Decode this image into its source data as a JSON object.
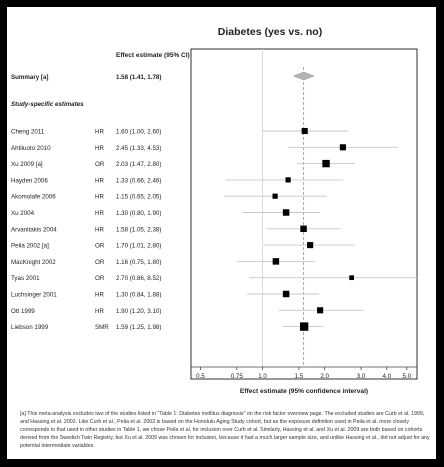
{
  "chart_data": {
    "type": "forest",
    "title": "Diabetes (yes vs. no)",
    "effect_header": "Effect estimate (95% CI)",
    "summary": {
      "label": "Summary [a]",
      "estimate": 1.58,
      "lower": 1.41,
      "upper": 1.78,
      "text": "1.58 (1.41, 1.78)"
    },
    "section_label": "Study-specific estimates",
    "studies": [
      {
        "label": "Cheng 2011",
        "measure": "HR",
        "estimate": 1.6,
        "lower": 1.0,
        "upper": 2.6,
        "text": "1.60 (1.00, 2.60)",
        "weight": 2
      },
      {
        "label": "Ahtiluoto 2010",
        "measure": "HR",
        "estimate": 2.45,
        "lower": 1.33,
        "upper": 4.53,
        "text": "2.45 (1.33, 4.53)",
        "weight": 2
      },
      {
        "label": "Xu 2009 [a]",
        "measure": "OR",
        "estimate": 2.03,
        "lower": 1.47,
        "upper": 2.8,
        "text": "2.03 (1.47, 2.80)",
        "weight": 4
      },
      {
        "label": "Hayden 2006",
        "measure": "HR",
        "estimate": 1.33,
        "lower": 0.66,
        "upper": 2.46,
        "text": "1.33 (0.66, 2.46)",
        "weight": 1
      },
      {
        "label": "Akomolafe 2006",
        "measure": "HR",
        "estimate": 1.15,
        "lower": 0.65,
        "upper": 2.05,
        "text": "1.15 (0.65, 2.05)",
        "weight": 1
      },
      {
        "label": "Xu 2004",
        "measure": "HR",
        "estimate": 1.3,
        "lower": 0.8,
        "upper": 1.9,
        "text": "1.30 (0.80, 1.90)",
        "weight": 2.5
      },
      {
        "label": "Arvanitakis 2004",
        "measure": "HR",
        "estimate": 1.58,
        "lower": 1.05,
        "upper": 2.38,
        "text": "1.58 (1.05, 2.38)",
        "weight": 2.5
      },
      {
        "label": "Peila 2002 [a]",
        "measure": "OR",
        "estimate": 1.7,
        "lower": 1.01,
        "upper": 2.8,
        "text": "1.70 (1.01, 2.80)",
        "weight": 2
      },
      {
        "label": "MacKnight 2002",
        "measure": "OR",
        "estimate": 1.16,
        "lower": 0.75,
        "upper": 1.8,
        "text": "1.16 (0.75, 1.80)",
        "weight": 2.5
      },
      {
        "label": "Tyas 2001",
        "measure": "OR",
        "estimate": 2.7,
        "lower": 0.86,
        "upper": 8.52,
        "text": "2.70 (0.86, 8.52)",
        "weight": 0.6
      },
      {
        "label": "Luchsinger 2001",
        "measure": "HR",
        "estimate": 1.3,
        "lower": 0.84,
        "upper": 1.88,
        "text": "1.30 (0.84, 1.88)",
        "weight": 2.5
      },
      {
        "label": "Ott 1999",
        "measure": "HR",
        "estimate": 1.9,
        "lower": 1.2,
        "upper": 3.1,
        "text": "1.90 (1.20, 3.10)",
        "weight": 2
      },
      {
        "label": "Liebson 1999",
        "measure": "SMR",
        "estimate": 1.59,
        "lower": 1.25,
        "upper": 1.98,
        "text": "1.59 (1.25, 1.98)",
        "weight": 6
      }
    ],
    "x_scale": "log",
    "x_ticks": [
      0.5,
      0.75,
      1.0,
      1.5,
      2.0,
      3.0,
      4.0,
      5.0
    ],
    "x_tick_labels": [
      "0.5",
      "0.75",
      "1.0",
      "1.5",
      "2.0",
      "3.0",
      "4.0",
      "5.0"
    ],
    "xlim": [
      0.45,
      5.6
    ],
    "reference_line": 1.0,
    "xlabel": "Effect estimate (95% confidence interval)"
  },
  "footnote": "[a] This meta-analysis excludes two of the studies listed in \"Table 1: Diabetes mellitus diagnosis\" on the risk factor overview page.  The excluded studies are Curb et al. 1999, and Hassing et al. 2002.  Like Curb et al., Peila et al. 2002 is based on the Honolulu Aging Study cohort, but as the exposure definition used in Peila et al. more closely corresponds to that used in other studies in Table 1, we chose Peila et al. for inclusion over Curb et al.  Similarly, Hassing et al. and Xu et al. 2009 are both based on cohorts derived from the Swedish Twin Registry, but Xu et al. 2009 was chosen for inclusion, because it had a much larger sample size, and unlike Hassing et al., did not adjust for any potential intermediate variables.",
  "colors": {
    "frame": "#000000",
    "square": "#000000",
    "whisker": "#c8c8c8",
    "diamond": "#b4b4b4",
    "summary_line": "#a0a0a0",
    "axis": "#444444",
    "text": "#222222"
  }
}
